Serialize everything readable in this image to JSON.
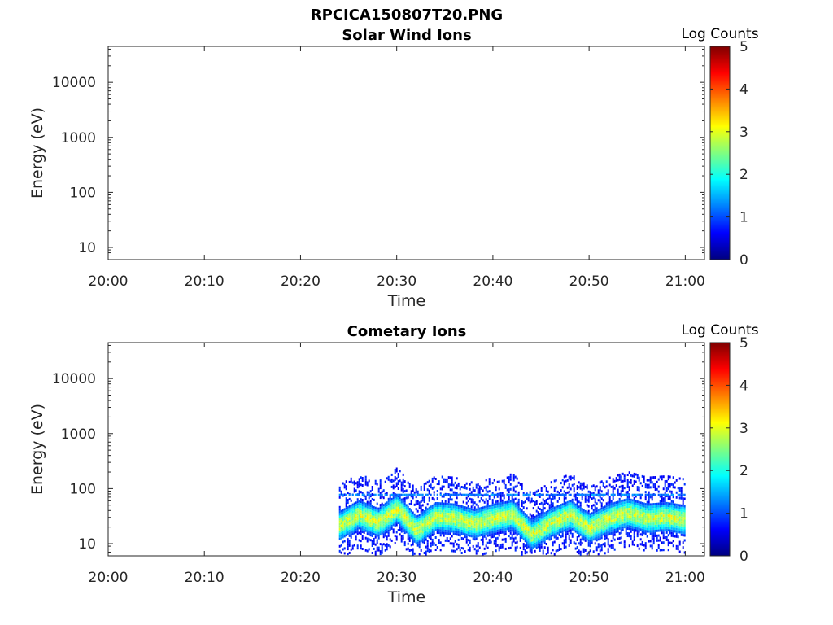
{
  "figure_title": "RPCICA150807T20.PNG",
  "colors": {
    "background": "#ffffff",
    "axis": "#262626",
    "colormap": [
      "#00007f",
      "#0000ff",
      "#0080ff",
      "#00ffff",
      "#80ff80",
      "#ffff00",
      "#ff8000",
      "#ff0000",
      "#7f0000"
    ]
  },
  "chart_data": [
    {
      "type": "heatmap",
      "title": "Solar Wind Ions",
      "xlabel": "Time",
      "ylabel": "Energy (eV)",
      "y_scale": "log",
      "x_ticks": [
        "20:00",
        "20:10",
        "20:20",
        "20:30",
        "20:40",
        "20:50",
        "21:00"
      ],
      "x_range": [
        "20:00",
        "21:02"
      ],
      "y_ticks": [
        "10",
        "100",
        "1000",
        "10000"
      ],
      "y_tick_values": [
        10,
        100,
        1000,
        10000
      ],
      "y_range": [
        6,
        45000
      ],
      "colorbar": {
        "label": "Log Counts",
        "ticks": [
          "0",
          "1",
          "2",
          "3",
          "4",
          "5"
        ],
        "range": [
          0,
          5
        ]
      },
      "data": []
    },
    {
      "type": "heatmap",
      "title": "Cometary Ions",
      "xlabel": "Time",
      "ylabel": "Energy (eV)",
      "y_scale": "log",
      "x_ticks": [
        "20:00",
        "20:10",
        "20:20",
        "20:30",
        "20:40",
        "20:50",
        "21:00"
      ],
      "x_range": [
        "20:00",
        "21:02"
      ],
      "y_ticks": [
        "10",
        "100",
        "1000",
        "10000"
      ],
      "y_tick_values": [
        10,
        100,
        1000,
        10000
      ],
      "y_range": [
        6,
        45000
      ],
      "colorbar": {
        "label": "Log Counts",
        "ticks": [
          "0",
          "1",
          "2",
          "3",
          "4",
          "5"
        ],
        "range": [
          0,
          5
        ]
      },
      "data_time_range": [
        "20:24",
        "21:00"
      ],
      "band_peak_energy_ev": [
        [
          "20:24",
          22
        ],
        [
          "20:26",
          35
        ],
        [
          "20:28",
          25
        ],
        [
          "20:30",
          45
        ],
        [
          "20:32",
          18
        ],
        [
          "20:34",
          32
        ],
        [
          "20:36",
          30
        ],
        [
          "20:38",
          24
        ],
        [
          "20:40",
          30
        ],
        [
          "20:42",
          35
        ],
        [
          "20:44",
          15
        ],
        [
          "20:46",
          25
        ],
        [
          "20:48",
          35
        ],
        [
          "20:50",
          20
        ],
        [
          "20:52",
          30
        ],
        [
          "20:54",
          38
        ],
        [
          "20:56",
          30
        ],
        [
          "20:58",
          32
        ],
        [
          "21:00",
          28
        ]
      ],
      "band_peak_log_counts": 3,
      "top_stripe_energy_ev": 78
    }
  ]
}
